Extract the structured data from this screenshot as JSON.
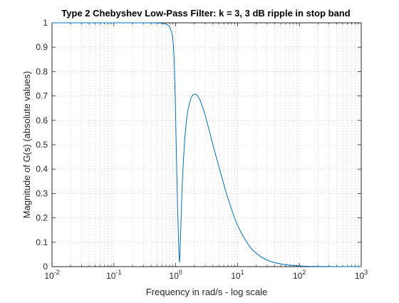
{
  "chart_data": {
    "type": "line",
    "title": "Type 2 Chebyshev Low-Pass Filter: k = 3, 3 dB ripple in stop band",
    "xlabel": "Frequency in rad/s - log scale",
    "ylabel": "Magnitude of G(s) (absolute values)",
    "x_scale": "log",
    "xlim": [
      0.01,
      1000
    ],
    "ylim": [
      0,
      1
    ],
    "grid": true,
    "minor_grid": true,
    "legend": "none",
    "x_ticks": [
      {
        "value": 0.01,
        "base": "10",
        "exp": "-2"
      },
      {
        "value": 0.1,
        "base": "10",
        "exp": "-1"
      },
      {
        "value": 1,
        "base": "10",
        "exp": "0"
      },
      {
        "value": 10,
        "base": "10",
        "exp": "1"
      },
      {
        "value": 100,
        "base": "10",
        "exp": "2"
      },
      {
        "value": 1000,
        "base": "10",
        "exp": "3"
      }
    ],
    "y_ticks": [
      {
        "value": 0,
        "label": "0"
      },
      {
        "value": 0.1,
        "label": "0.1"
      },
      {
        "value": 0.2,
        "label": "0.2"
      },
      {
        "value": 0.3,
        "label": "0.3"
      },
      {
        "value": 0.4,
        "label": "0.4"
      },
      {
        "value": 0.5,
        "label": "0.5"
      },
      {
        "value": 0.6,
        "label": "0.6"
      },
      {
        "value": 0.7,
        "label": "0.7"
      },
      {
        "value": 0.8,
        "label": "0.8"
      },
      {
        "value": 0.9,
        "label": "0.9"
      },
      {
        "value": 1,
        "label": "1"
      }
    ],
    "series": [
      {
        "color": "#0072bd",
        "x": [
          0.01,
          0.1,
          0.3,
          0.5,
          0.6,
          0.7,
          0.75,
          0.8,
          0.85,
          0.88,
          0.9,
          0.92,
          0.95,
          0.98,
          1.0,
          1.03,
          1.06,
          1.09,
          1.12,
          1.14,
          1.155,
          1.17,
          1.2,
          1.25,
          1.3,
          1.4,
          1.5,
          1.6,
          1.8,
          2.0,
          2.2,
          2.5,
          3.0,
          4.0,
          5.0,
          7.0,
          10,
          15,
          20,
          30,
          50,
          100,
          200,
          500,
          1000
        ],
        "y": [
          1.0,
          1.0,
          1.0,
          0.9995,
          0.998,
          0.994,
          0.99,
          0.982,
          0.965,
          0.95,
          0.93,
          0.9,
          0.82,
          0.7,
          0.6,
          0.45,
          0.3,
          0.18,
          0.08,
          0.03,
          0.02,
          0.05,
          0.13,
          0.27,
          0.38,
          0.52,
          0.6,
          0.65,
          0.695,
          0.707,
          0.703,
          0.68,
          0.62,
          0.5,
          0.41,
          0.28,
          0.17,
          0.09,
          0.055,
          0.027,
          0.011,
          0.003,
          0.0008,
          0.0001,
          0.0
        ]
      }
    ],
    "colors": {
      "axes": "#262626",
      "grid": "#262626",
      "line": "#0072bd"
    }
  }
}
